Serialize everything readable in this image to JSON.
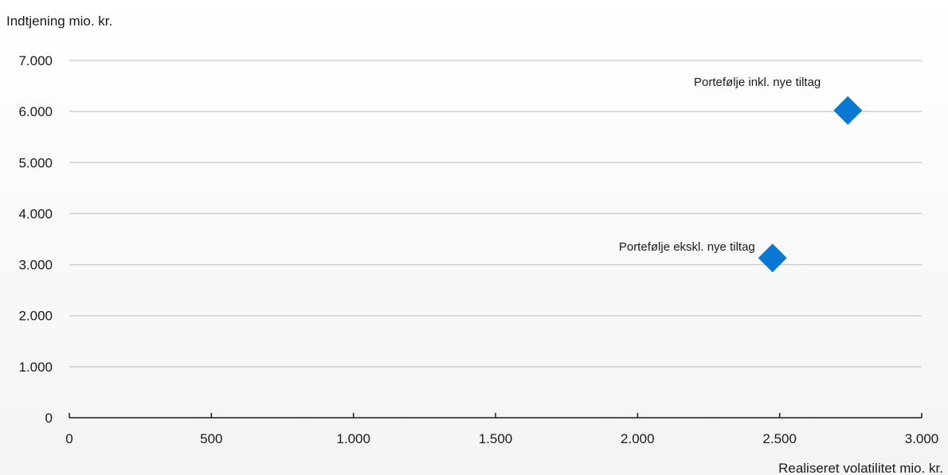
{
  "chart_data": {
    "type": "scatter",
    "title": "",
    "ylabel": "Indtjening mio. kr.",
    "xlabel": "Realiseret volatilitet mio. kr.",
    "xlim": [
      0,
      3000
    ],
    "ylim": [
      0,
      7000
    ],
    "x_ticks": [
      "0",
      "500",
      "1.000",
      "1.500",
      "2.000",
      "2.500",
      "3.000"
    ],
    "y_ticks": [
      "0",
      "1.000",
      "2.000",
      "3.000",
      "4.000",
      "5.000",
      "6.000",
      "7.000"
    ],
    "grid": true,
    "marker": "diamond",
    "marker_color": "#0a78d2",
    "grid_color": "#cfcfcf",
    "axis_color": "#1a1a1a",
    "points": [
      {
        "label": "Portefølje inkl. nye tiltag",
        "x": 2740,
        "y": 6020
      },
      {
        "label": "Portefølje ekskl. nye tiltag",
        "x": 2475,
        "y": 3130
      }
    ]
  }
}
